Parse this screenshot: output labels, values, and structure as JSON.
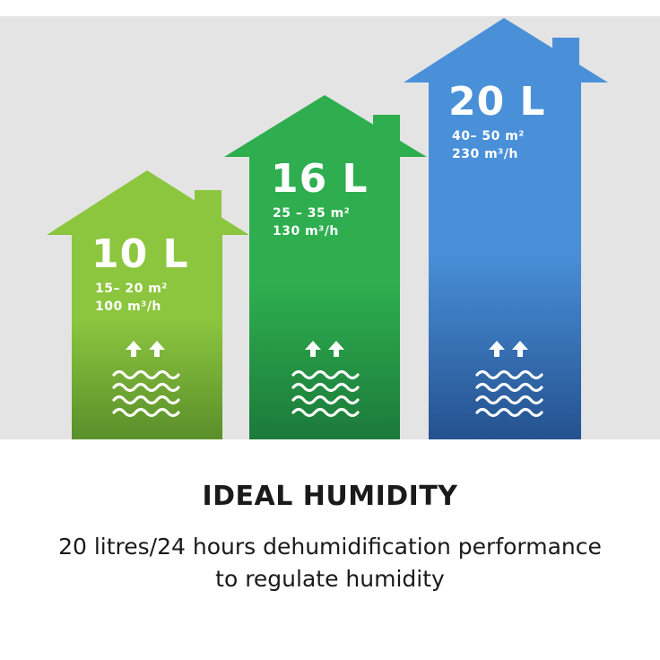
{
  "houses": [
    {
      "capacity": "10 L",
      "area": "15– 20 m²",
      "airflow": "100 m³/h",
      "color_top": "#8cc63f",
      "color_bottom": "#5a8f2a"
    },
    {
      "capacity": "16 L",
      "area": "25 – 35 m²",
      "airflow": "130 m³/h",
      "color_top": "#2eae4f",
      "color_bottom": "#1c7a3a"
    },
    {
      "capacity": "20 L",
      "area": "40– 50 m²",
      "airflow": "230 m³/h",
      "color_top": "#4a90d9",
      "color_bottom": "#24528f"
    }
  ],
  "icons": [
    "arrows-up-icon",
    "water-waves-icon"
  ],
  "heading": "IDEAL HUMIDITY",
  "description": {
    "line1": "20 litres/24 hours dehumidification performance",
    "line2": "to regulate humidity"
  }
}
